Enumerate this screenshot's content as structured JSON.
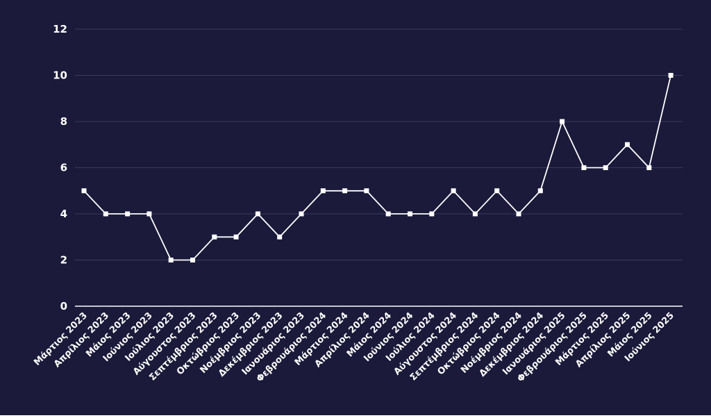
{
  "colors": {
    "background": "#1b1a3a",
    "line": "#ffffff",
    "marker": "#ffffff",
    "grid": "#3a3a5e",
    "axis": "#ffffff",
    "text": "#ffffff"
  },
  "chart_data": {
    "type": "line",
    "title": "",
    "xlabel": "",
    "ylabel": "",
    "ylim": [
      0,
      12
    ],
    "yticks": [
      0,
      2,
      4,
      6,
      8,
      10,
      12
    ],
    "grid": "horizontal",
    "legend": "none",
    "marker": "square",
    "categories": [
      "Μάρτιος 2023",
      "Απρίλιος 2023",
      "Μάιος 2023",
      "Ιούνιος 2023",
      "Ιούλιος 2023",
      "Αύγουστος 2023",
      "Σεπτέμβριος 2023",
      "Οκτώβριος 2023",
      "Νοέμβριος 2023",
      "Δεκέμβριος 2023",
      "Ιανουάριος 2023",
      "Φεβρουάριος 2024",
      "Μάρτιος 2024",
      "Απρίλιος 2024",
      "Μάιος 2024",
      "Ιούνιος 2024",
      "Ιούλιος 2024",
      "Αύγουστος 2024",
      "Σεπτέμβριος 2024",
      "Οκτώβριος 2024",
      "Νοέμβριος 2024",
      "Δεκέμβριος 2024",
      "Ιανουάριος 2025",
      "Φεβρουάριος 2025",
      "Μάρτιος 2025",
      "Απρίλιος 2025",
      "Μάιος 2025",
      "Ιούνιος 2025"
    ],
    "values": [
      5,
      4,
      4,
      4,
      2,
      2,
      3,
      3,
      4,
      3,
      4,
      5,
      5,
      5,
      4,
      4,
      4,
      5,
      4,
      5,
      4,
      5,
      8,
      6,
      6,
      7,
      6,
      10
    ]
  }
}
